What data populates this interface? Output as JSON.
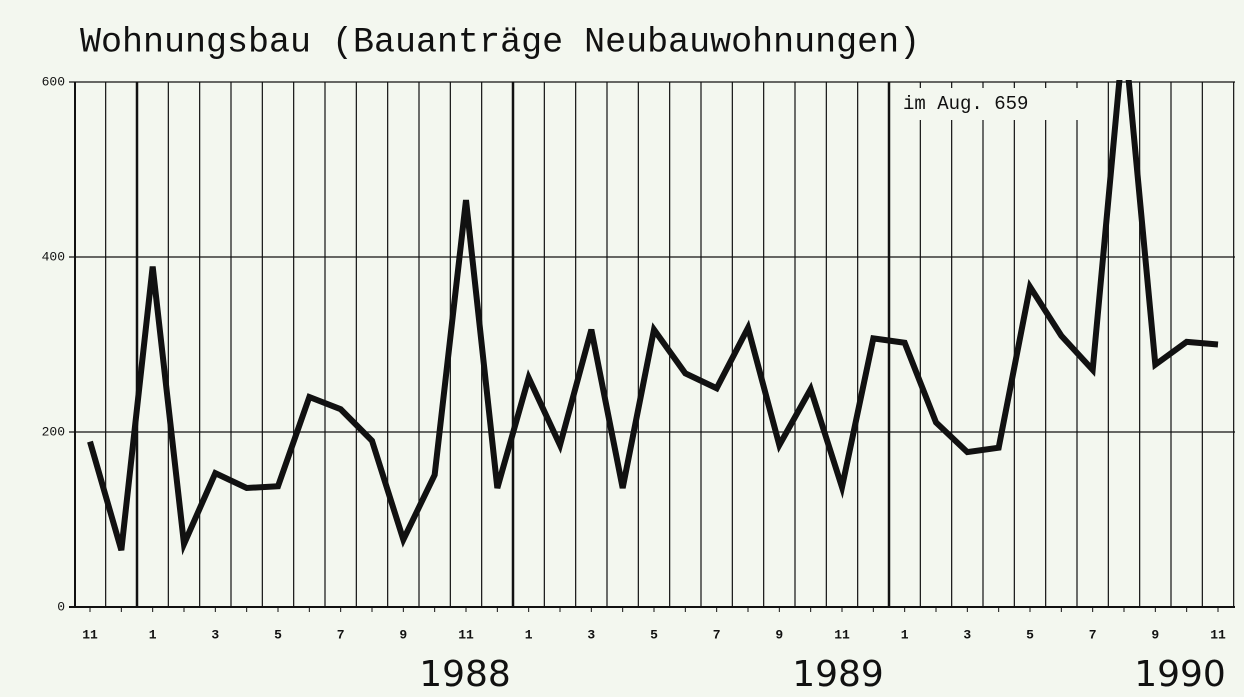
{
  "chart_data": {
    "type": "line",
    "title": "Wohnungsbau (Bauanträge Neubauwohnungen)",
    "categories": [
      "11",
      null,
      "1",
      null,
      "3",
      null,
      "5",
      null,
      "7",
      null,
      "9",
      null,
      "11",
      null,
      "1",
      null,
      "3",
      null,
      "5",
      null,
      "7",
      null,
      "9",
      null,
      "11",
      null,
      "1",
      null,
      "3",
      null,
      "5",
      null,
      "7",
      null,
      "9",
      null,
      "11"
    ],
    "years": [
      "1988",
      "1989",
      "1990"
    ],
    "values": [
      189,
      65,
      389,
      72,
      153,
      136,
      138,
      240,
      226,
      190,
      77,
      151,
      465,
      136,
      262,
      185,
      317,
      136,
      317,
      267,
      250,
      319,
      185,
      249,
      137,
      307,
      302,
      211,
      177,
      182,
      366,
      310,
      271,
      659,
      277,
      303,
      300
    ],
    "annotation": "im Aug. 659",
    "color": "#111111",
    "ylim": [
      0,
      600
    ],
    "yticks": [
      0,
      200,
      400,
      600
    ],
    "grid": true
  }
}
